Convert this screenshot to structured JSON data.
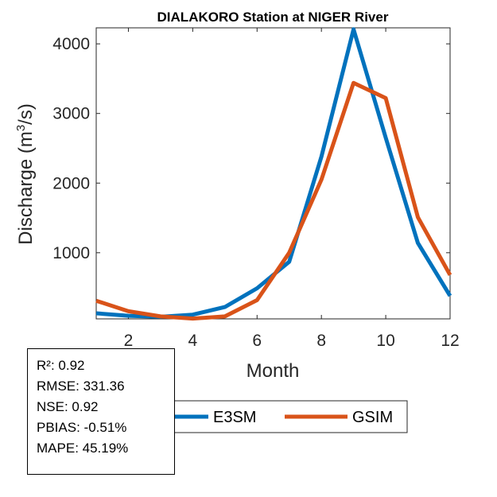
{
  "chart_data": {
    "type": "line",
    "title": "DIALAKORO  Station at  NIGER  River",
    "xlabel": "Month",
    "ylabel_prefix": "Discharge (m",
    "ylabel_sup": "3",
    "ylabel_suffix": "/s)",
    "xlim": [
      1,
      12
    ],
    "ylim": [
      50,
      4230
    ],
    "xticks": [
      2,
      4,
      6,
      8,
      10,
      12
    ],
    "yticks": [
      1000,
      2000,
      3000,
      4000
    ],
    "x": [
      1,
      2,
      3,
      4,
      5,
      6,
      7,
      8,
      9,
      10,
      11,
      12
    ],
    "series": [
      {
        "name": "E3SM",
        "color": "#0072BD",
        "values": [
          130,
          95,
          80,
          110,
          220,
          490,
          870,
          2380,
          4210,
          2650,
          1140,
          380
        ]
      },
      {
        "name": "GSIM",
        "color": "#D95319",
        "values": [
          310,
          160,
          85,
          55,
          85,
          320,
          1000,
          2050,
          3440,
          3220,
          1510,
          680
        ]
      }
    ],
    "legend": {
      "placement": "bottom-right",
      "entries": [
        "E3SM",
        "GSIM"
      ]
    },
    "grid": false
  },
  "stats": [
    {
      "label": "R²",
      "value": "0.92"
    },
    {
      "label": "RMSE",
      "value": "331.36"
    },
    {
      "label": "NSE",
      "value": "0.92"
    },
    {
      "label": "PBIAS",
      "value": "-0.51%"
    },
    {
      "label": "MAPE",
      "value": "45.19%"
    }
  ]
}
